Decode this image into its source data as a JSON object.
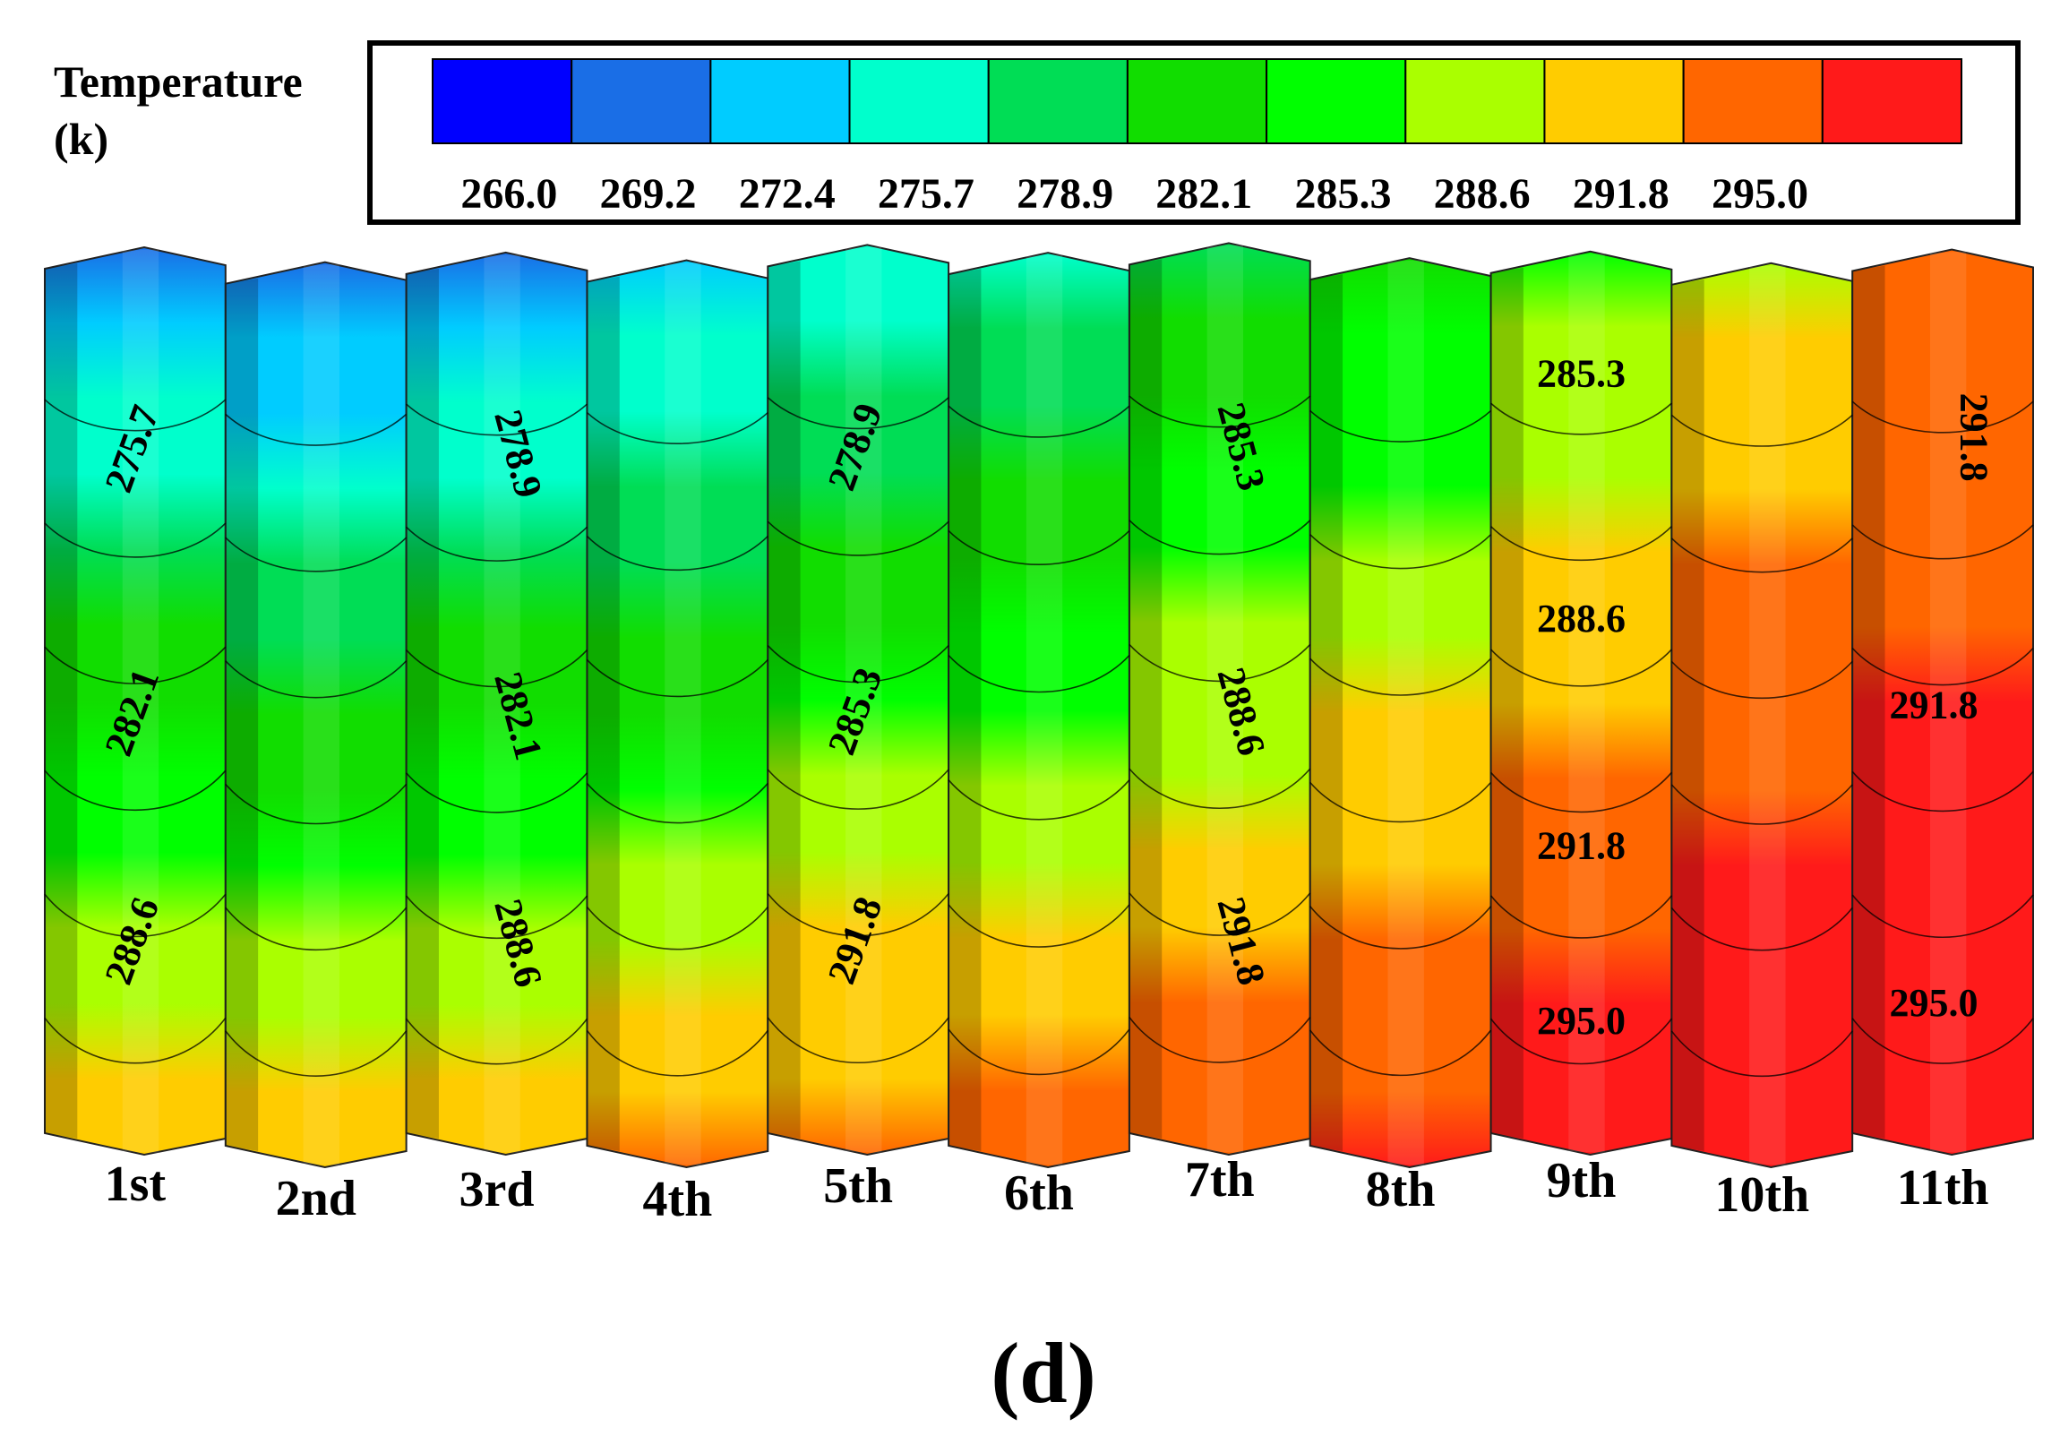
{
  "chart_data": {
    "type": "heatmap",
    "title": "Temperature",
    "unit": "(k)",
    "colorbar": {
      "ticks": [
        "266.0",
        "269.2",
        "272.4",
        "275.7",
        "278.9",
        "282.1",
        "285.3",
        "288.6",
        "291.8",
        "295.0"
      ],
      "colors": [
        "#0000ff",
        "#1a6ee6",
        "#00ccff",
        "#00ffcc",
        "#00dd55",
        "#11dd00",
        "#00ff00",
        "#aaff00",
        "#ffcc00",
        "#ff6600",
        "#ff1a1a"
      ]
    },
    "stages": [
      "1st",
      "2nd",
      "3rd",
      "4th",
      "5th",
      "6th",
      "7th",
      "8th",
      "9th",
      "10th",
      "11th"
    ],
    "stage_temps": [
      {
        "top": 271.0,
        "bottom": 289.5
      },
      {
        "top": 270.0,
        "bottom": 289.0
      },
      {
        "top": 271.0,
        "bottom": 289.5
      },
      {
        "top": 272.0,
        "bottom": 290.0
      },
      {
        "top": 274.0,
        "bottom": 291.0
      },
      {
        "top": 276.0,
        "bottom": 291.0
      },
      {
        "top": 279.0,
        "bottom": 292.0
      },
      {
        "top": 281.0,
        "bottom": 293.0
      },
      {
        "top": 284.0,
        "bottom": 294.0
      },
      {
        "top": 287.0,
        "bottom": 295.0
      },
      {
        "top": 290.0,
        "bottom": 295.0
      }
    ],
    "contour_labels": [
      {
        "text": "275.7",
        "stage": "1st"
      },
      {
        "text": "282.1",
        "stage": "1st"
      },
      {
        "text": "288.6",
        "stage": "1st"
      },
      {
        "text": "278.9",
        "stage": "3rd"
      },
      {
        "text": "282.1",
        "stage": "3rd"
      },
      {
        "text": "288.6",
        "stage": "3rd"
      },
      {
        "text": "278.9",
        "stage": "5th"
      },
      {
        "text": "285.3",
        "stage": "5th"
      },
      {
        "text": "291.8",
        "stage": "5th"
      },
      {
        "text": "285.3",
        "stage": "7th"
      },
      {
        "text": "288.6",
        "stage": "7th"
      },
      {
        "text": "291.8",
        "stage": "7th"
      },
      {
        "text": "285.3",
        "stage": "9th"
      },
      {
        "text": "288.6",
        "stage": "9th"
      },
      {
        "text": "291.8",
        "stage": "9th"
      },
      {
        "text": "295.0",
        "stage": "9th"
      },
      {
        "text": "291.8",
        "stage": "11th"
      },
      {
        "text": "291.8",
        "stage": "11th"
      },
      {
        "text": "295.0",
        "stage": "11th"
      }
    ],
    "panel_label": "(d)"
  }
}
